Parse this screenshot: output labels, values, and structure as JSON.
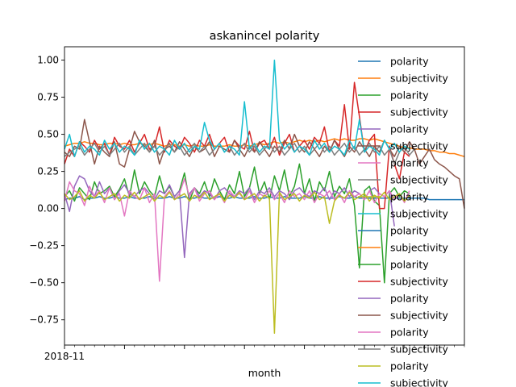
{
  "chart_data": {
    "type": "line",
    "title": "askanincel polarity",
    "xlabel": "month",
    "ylabel": "",
    "x_tick_labels": [
      "2018-11"
    ],
    "ylim": [
      -0.92,
      1.09
    ],
    "y_ticks": [
      -0.75,
      -0.5,
      -0.25,
      0.0,
      0.25,
      0.5,
      0.75,
      1.0
    ],
    "y_tick_labels": [
      "−0.75",
      "−0.50",
      "−0.25",
      "0.00",
      "0.25",
      "0.50",
      "0.75",
      "1.00"
    ],
    "x_range": [
      0,
      80
    ],
    "grid": false,
    "legend_position": "top-right",
    "series": [
      {
        "name": "polarity",
        "color": "#1f77b4",
        "x_start": 0,
        "values": [
          0.06,
          0.07,
          0.07,
          0.08,
          0.06,
          0.07,
          0.07,
          0.08,
          0.07,
          0.07,
          0.08,
          0.07,
          0.07,
          0.08,
          0.07,
          0.07,
          0.07,
          0.08,
          0.07,
          0.07,
          0.07,
          0.08,
          0.07,
          0.07,
          0.08,
          0.07,
          0.07,
          0.08,
          0.07,
          0.07,
          0.07,
          0.08,
          0.07,
          0.07,
          0.08,
          0.07,
          0.07,
          0.07,
          0.08,
          0.07,
          0.07,
          0.08,
          0.07,
          0.07,
          0.08,
          0.07,
          0.07,
          0.07,
          0.08,
          0.07,
          0.07,
          0.08,
          0.07,
          0.07,
          0.07,
          0.08,
          0.07,
          0.07,
          0.08,
          0.07,
          0.07,
          0.07,
          0.07,
          0.07,
          0.07,
          0.07,
          0.07,
          0.07,
          0.07,
          0.07,
          0.07,
          0.07,
          0.07,
          0.06,
          0.06,
          0.06,
          0.06,
          0.06,
          0.06,
          0.06,
          0.06
        ]
      },
      {
        "name": "subjectivity",
        "color": "#ff7f0e",
        "x_start": 0,
        "values": [
          0.42,
          0.43,
          0.44,
          0.44,
          0.45,
          0.44,
          0.44,
          0.43,
          0.43,
          0.44,
          0.44,
          0.43,
          0.44,
          0.43,
          0.43,
          0.44,
          0.43,
          0.43,
          0.44,
          0.43,
          0.42,
          0.43,
          0.43,
          0.42,
          0.43,
          0.42,
          0.43,
          0.42,
          0.42,
          0.43,
          0.42,
          0.42,
          0.42,
          0.43,
          0.42,
          0.42,
          0.43,
          0.42,
          0.43,
          0.44,
          0.43,
          0.44,
          0.45,
          0.44,
          0.45,
          0.44,
          0.45,
          0.46,
          0.45,
          0.46,
          0.45,
          0.46,
          0.45,
          0.46,
          0.47,
          0.46,
          0.47,
          0.46,
          0.46,
          0.47,
          0.47,
          0.46,
          0.47,
          0.46,
          0.45,
          0.44,
          0.43,
          0.42,
          0.41,
          0.41,
          0.4,
          0.4,
          0.4,
          0.39,
          0.39,
          0.38,
          0.38,
          0.37,
          0.37,
          0.36,
          0.35
        ]
      },
      {
        "name": "polarity",
        "color": "#2ca02c",
        "x_start": 0,
        "values": [
          0.08,
          0.12,
          0.05,
          0.14,
          0.1,
          0.06,
          0.18,
          0.1,
          0.12,
          0.15,
          0.08,
          0.13,
          0.2,
          0.08,
          0.26,
          0.1,
          0.18,
          0.12,
          0.08,
          0.22,
          0.1,
          0.15,
          0.08,
          0.12,
          0.24,
          0.05,
          0.14,
          0.1,
          0.18,
          0.08,
          0.2,
          0.12,
          0.06,
          0.16,
          0.1,
          0.25,
          0.08,
          0.14,
          0.28,
          0.1,
          0.18,
          0.06,
          0.22,
          0.12,
          0.26,
          0.08,
          0.15,
          0.3,
          0.1,
          0.2,
          0.05,
          0.18,
          0.12,
          0.25,
          0.08,
          0.15,
          0.1,
          0.2,
          0.02,
          -0.4,
          0.12,
          0.15,
          0.05,
          0.02,
          -0.5,
          0.1,
          0.14,
          0.08,
          0.12,
          0.1
        ]
      },
      {
        "name": "subjectivity",
        "color": "#d62728",
        "x_start": 0,
        "values": [
          0.3,
          0.4,
          0.35,
          0.45,
          0.42,
          0.38,
          0.46,
          0.4,
          0.44,
          0.36,
          0.48,
          0.42,
          0.4,
          0.46,
          0.38,
          0.44,
          0.5,
          0.4,
          0.42,
          0.55,
          0.38,
          0.46,
          0.42,
          0.4,
          0.48,
          0.44,
          0.38,
          0.46,
          0.42,
          0.5,
          0.4,
          0.44,
          0.48,
          0.38,
          0.46,
          0.42,
          0.4,
          0.52,
          0.38,
          0.44,
          0.46,
          0.4,
          0.48,
          0.36,
          0.44,
          0.5,
          0.38,
          0.42,
          0.46,
          0.4,
          0.48,
          0.44,
          0.55,
          0.38,
          0.46,
          0.42,
          0.7,
          0.4,
          0.85,
          0.62,
          0.38,
          0.46,
          0.5,
          0.0,
          0.0,
          0.42,
          0.3,
          0.2,
          0.38,
          0.35
        ]
      },
      {
        "name": "polarity",
        "color": "#9467bd",
        "x_start": 0,
        "values": [
          0.1,
          -0.02,
          0.15,
          0.22,
          0.2,
          0.12,
          0.08,
          0.18,
          0.1,
          0.14,
          0.06,
          0.12,
          0.16,
          0.1,
          0.08,
          0.12,
          0.14,
          0.1,
          0.06,
          0.12,
          0.1,
          0.16,
          0.08,
          0.12,
          -0.33,
          0.1,
          0.14,
          0.08,
          0.12,
          0.1,
          0.06,
          0.12,
          0.14,
          0.1,
          0.08,
          0.12,
          0.1,
          0.14,
          0.06,
          0.12,
          0.1,
          0.14,
          0.08,
          0.12,
          0.1,
          0.06,
          0.12,
          0.14,
          0.1,
          0.08,
          0.12,
          0.1,
          0.14,
          0.06,
          0.12,
          0.1,
          0.14,
          0.08,
          0.12,
          0.1,
          0.06,
          0.12,
          0.14,
          0.1,
          0.08,
          0.12,
          -0.12
        ]
      },
      {
        "name": "subjectivity",
        "color": "#8c564b",
        "x_start": 0,
        "values": [
          0.38,
          0.35,
          0.42,
          0.4,
          0.6,
          0.45,
          0.3,
          0.42,
          0.38,
          0.35,
          0.45,
          0.3,
          0.28,
          0.4,
          0.52,
          0.45,
          0.42,
          0.38,
          0.46,
          0.3,
          0.4,
          0.42,
          0.38,
          0.45,
          0.4,
          0.35,
          0.42,
          0.38,
          0.4,
          0.45,
          0.35,
          0.42,
          0.4,
          0.38,
          0.46,
          0.4,
          0.35,
          0.42,
          0.38,
          0.45,
          0.4,
          0.35,
          0.42,
          0.38,
          0.46,
          0.4,
          0.5,
          0.42,
          0.38,
          0.45,
          0.4,
          0.35,
          0.42,
          0.38,
          0.46,
          0.4,
          0.35,
          0.42,
          0.38,
          0.45,
          0.4,
          0.35,
          0.42,
          0.38,
          0.46,
          0.4,
          0.35,
          0.42,
          0.38,
          0.45,
          0.4,
          0.3,
          0.35,
          0.4,
          0.33,
          0.3,
          0.28,
          0.25,
          0.22,
          0.2,
          0.0
        ]
      },
      {
        "name": "polarity",
        "color": "#e377c2",
        "x_start": 0,
        "values": [
          0.05,
          0.18,
          0.12,
          0.1,
          0.02,
          0.15,
          0.08,
          0.12,
          0.04,
          0.14,
          0.06,
          0.1,
          -0.05,
          0.12,
          0.08,
          0.06,
          0.14,
          0.04,
          0.1,
          -0.49,
          0.08,
          0.12,
          0.06,
          0.1,
          0.2,
          0.08,
          0.14,
          0.05,
          0.1,
          0.12,
          0.06,
          0.1,
          0.04,
          0.12,
          0.08,
          0.1,
          0.06,
          0.12,
          0.04,
          0.1,
          0.08,
          0.12,
          0.06,
          0.1,
          0.04,
          0.12,
          0.08,
          0.1,
          0.06,
          0.12,
          0.04,
          0.1,
          0.08,
          0.12,
          0.06,
          0.1,
          0.04,
          0.12,
          0.08,
          0.1,
          0.06,
          0.12,
          0.04,
          0.1,
          0.08,
          0.12,
          0.06,
          0.1,
          0.04,
          0.12
        ]
      },
      {
        "name": "subjectivity",
        "color": "#7f7f7f",
        "x_start": 0,
        "values": [
          0.35,
          0.38,
          0.4,
          0.42,
          0.36,
          0.4,
          0.44,
          0.38,
          0.42,
          0.36,
          0.4,
          0.44,
          0.38,
          0.42,
          0.36,
          0.4,
          0.44,
          0.38,
          0.42,
          0.36,
          0.4,
          0.44,
          0.38,
          0.42,
          0.36,
          0.4,
          0.44,
          0.38,
          0.42,
          0.36,
          0.4,
          0.44,
          0.38,
          0.42,
          0.36,
          0.4,
          0.44,
          0.38,
          0.42,
          0.36,
          0.4,
          0.44,
          0.38,
          0.42,
          0.36,
          0.4,
          0.44,
          0.38,
          0.42,
          0.36,
          0.4,
          0.44,
          0.38,
          0.42,
          0.36,
          0.4,
          0.44,
          0.38,
          0.42,
          0.36,
          0.4,
          0.44,
          0.38,
          0.42,
          0.36,
          0.4,
          0.3,
          0.38,
          0.42,
          0.36,
          0.4
        ]
      },
      {
        "name": "polarity",
        "color": "#bcbd22",
        "x_start": 0,
        "values": [
          0.1,
          0.06,
          0.08,
          0.12,
          0.05,
          0.09,
          0.07,
          0.11,
          0.06,
          0.08,
          0.1,
          0.05,
          0.09,
          0.07,
          0.11,
          0.06,
          0.08,
          0.1,
          0.05,
          0.09,
          0.07,
          0.11,
          0.06,
          0.08,
          0.1,
          0.05,
          0.09,
          0.07,
          0.11,
          0.06,
          0.08,
          0.1,
          0.05,
          0.09,
          0.07,
          0.11,
          0.06,
          0.08,
          0.1,
          0.05,
          0.09,
          0.07,
          -0.84,
          0.11,
          0.06,
          0.08,
          0.1,
          0.05,
          0.09,
          0.07,
          0.11,
          0.06,
          0.08,
          -0.1,
          0.05,
          0.09,
          0.07,
          0.11,
          0.06,
          0.08,
          0.1,
          0.05,
          0.09,
          0.07,
          0.11,
          0.06,
          0.08,
          0.1,
          0.05,
          0.09
        ]
      },
      {
        "name": "subjectivity",
        "color": "#17becf",
        "x_start": 0,
        "values": [
          0.4,
          0.5,
          0.35,
          0.45,
          0.38,
          0.42,
          0.4,
          0.36,
          0.46,
          0.4,
          0.44,
          0.38,
          0.42,
          0.4,
          0.36,
          0.46,
          0.4,
          0.44,
          0.38,
          0.42,
          0.4,
          0.36,
          0.46,
          0.4,
          0.44,
          0.38,
          0.42,
          0.4,
          0.58,
          0.46,
          0.4,
          0.44,
          0.38,
          0.42,
          0.4,
          0.36,
          0.72,
          0.4,
          0.44,
          0.38,
          0.42,
          0.4,
          1.0,
          0.46,
          0.4,
          0.44,
          0.38,
          0.42,
          0.4,
          0.36,
          0.46,
          0.4,
          0.44,
          0.38,
          0.42,
          0.4,
          0.36,
          0.46,
          0.4,
          0.6,
          0.38,
          0.42,
          0.4,
          0.36,
          0.46,
          0.4,
          0.44,
          0.38,
          0.42,
          0.4
        ]
      }
    ],
    "legend_entries": [
      {
        "label": "polarity",
        "color": "#1f77b4"
      },
      {
        "label": "subjectivity",
        "color": "#ff7f0e"
      },
      {
        "label": "polarity",
        "color": "#2ca02c"
      },
      {
        "label": "subjectivity",
        "color": "#d62728"
      },
      {
        "label": "polarity",
        "color": "#9467bd"
      },
      {
        "label": "subjectivity",
        "color": "#8c564b"
      },
      {
        "label": "polarity",
        "color": "#e377c2"
      },
      {
        "label": "subjectivity",
        "color": "#7f7f7f"
      },
      {
        "label": "polarity",
        "color": "#bcbd22"
      },
      {
        "label": "subjectivity",
        "color": "#17becf"
      },
      {
        "label": "polarity",
        "color": "#1f77b4"
      },
      {
        "label": "subjectivity",
        "color": "#ff7f0e"
      },
      {
        "label": "polarity",
        "color": "#2ca02c"
      },
      {
        "label": "subjectivity",
        "color": "#d62728"
      },
      {
        "label": "polarity",
        "color": "#9467bd"
      },
      {
        "label": "subjectivity",
        "color": "#8c564b"
      },
      {
        "label": "polarity",
        "color": "#e377c2"
      },
      {
        "label": "subjectivity",
        "color": "#7f7f7f"
      },
      {
        "label": "polarity",
        "color": "#bcbd22"
      },
      {
        "label": "subjectivity",
        "color": "#17becf"
      }
    ]
  }
}
